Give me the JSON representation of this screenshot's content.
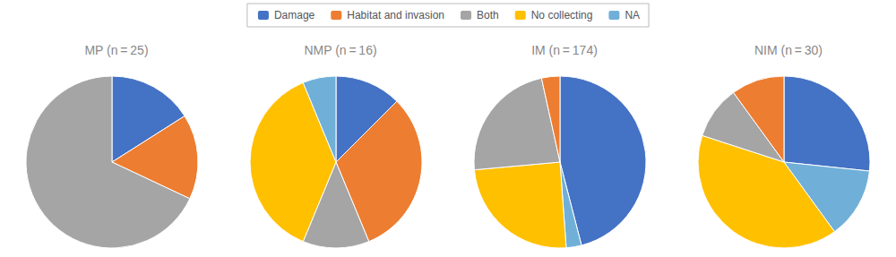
{
  "chart_data": [
    {
      "type": "pie",
      "title": "MP (n = 25)",
      "categories": [
        "Damage",
        "Habitat and invasion",
        "Both"
      ],
      "values": [
        4,
        4,
        17
      ],
      "colors": [
        "#4472C4",
        "#ED7D31",
        "#A5A5A5"
      ],
      "legend": "top"
    },
    {
      "type": "pie",
      "title": "NMP (n = 16)",
      "categories": [
        "Damage",
        "Habitat and invasion",
        "Both",
        "No collecting",
        "NA"
      ],
      "values": [
        2,
        5,
        2,
        6,
        1
      ],
      "colors": [
        "#4472C4",
        "#ED7D31",
        "#A5A5A5",
        "#FFC000",
        "#70B0D8"
      ],
      "legend": "top"
    },
    {
      "type": "pie",
      "title": "IM (n = 174)",
      "categories": [
        "Damage",
        "NA",
        "No collecting",
        "Both",
        "Habitat and invasion"
      ],
      "values": [
        80,
        5,
        43,
        40,
        6
      ],
      "colors": [
        "#4472C4",
        "#70B0D8",
        "#FFC000",
        "#A5A5A5",
        "#ED7D31"
      ],
      "legend": "top"
    },
    {
      "type": "pie",
      "title": "NIM (n = 30)",
      "categories": [
        "Damage",
        "NA",
        "No collecting",
        "Both",
        "Habitat and invasion"
      ],
      "values": [
        8,
        4,
        12,
        3,
        3
      ],
      "colors": [
        "#4472C4",
        "#70B0D8",
        "#FFC000",
        "#A5A5A5",
        "#ED7D31"
      ],
      "legend": "top"
    }
  ]
}
